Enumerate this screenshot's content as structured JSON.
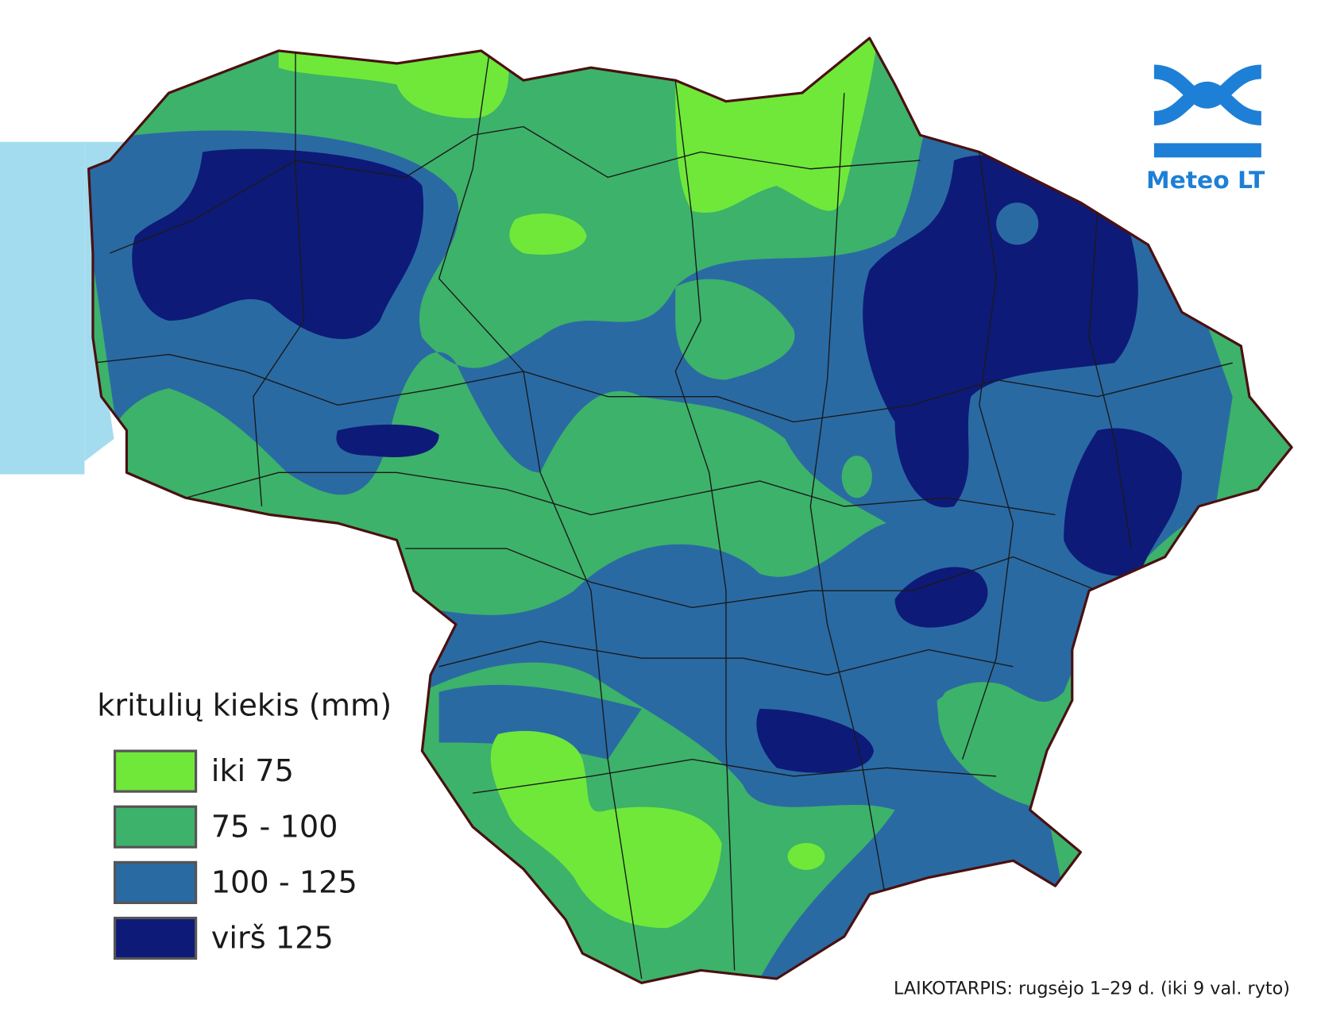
{
  "legend": {
    "title": "kritulių kiekis (mm)",
    "items": [
      {
        "label": "iki 75",
        "color": "#6fe83a"
      },
      {
        "label": "75 - 100",
        "color": "#3db26a"
      },
      {
        "label": "100 - 125",
        "color": "#2a6aa3"
      },
      {
        "label": "virš 125",
        "color": "#0e1a78"
      }
    ]
  },
  "logo": {
    "text": "Meteo LT"
  },
  "period": "LAIKOTARPIS: rugsėjo 1–29 d. (iki 9 val. ryto)"
}
